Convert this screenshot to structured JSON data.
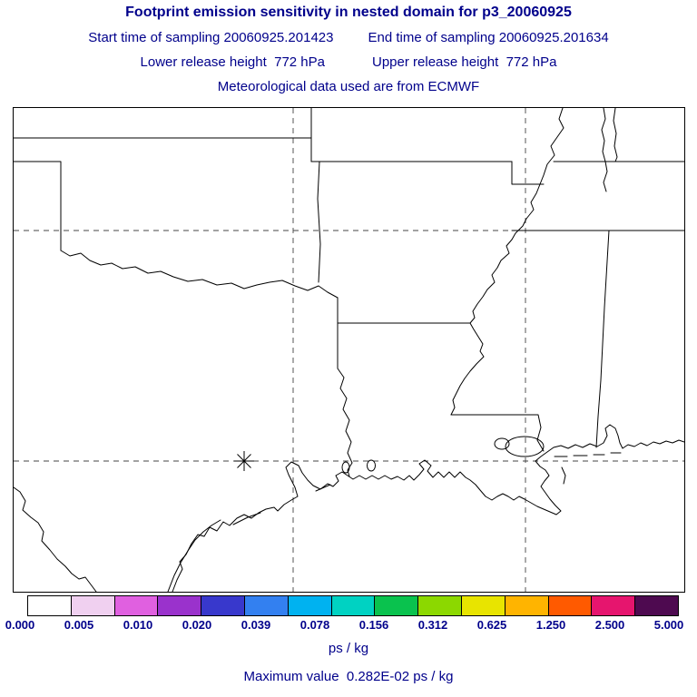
{
  "header": {
    "title": "Footprint emission sensitivity in nested domain for p3_20060925",
    "start_time": "Start time of sampling 20060925.201423",
    "end_time": "End time of sampling 20060925.201634",
    "lower_release": "Lower release height  772 hPa",
    "upper_release": "Upper release height  772 hPa",
    "met_data": "Meteorological data used are from ECMWF",
    "text_color": "#00008B"
  },
  "map": {
    "description": "Base map of the south-central United States and Gulf of Mexico coast (Texas, Oklahoma, Arkansas, Louisiana, Mississippi) with solid state-border and coastline outlines and dashed latitude/longitude gridlines",
    "marker": {
      "type": "asterisk",
      "meaning": "release location"
    },
    "gridline_style": "dashed"
  },
  "colorbar": {
    "segments": [
      "#FFFFFF",
      "#F0D0F0",
      "#E060E0",
      "#9A32CC",
      "#3838CC",
      "#3380F0",
      "#00B2F0",
      "#00D2C2",
      "#0AC24E",
      "#8CD800",
      "#E8E400",
      "#FFB400",
      "#FF5A00",
      "#E6156E",
      "#4E0A50"
    ],
    "tick_labels": [
      "0.000",
      "0.005",
      "0.010",
      "0.020",
      "0.039",
      "0.078",
      "0.156",
      "0.312",
      "0.625",
      "1.250",
      "2.500",
      "5.000"
    ],
    "units": "ps / kg"
  },
  "footer": {
    "maximum_value": "Maximum value  0.282E-02 ps / kg"
  }
}
